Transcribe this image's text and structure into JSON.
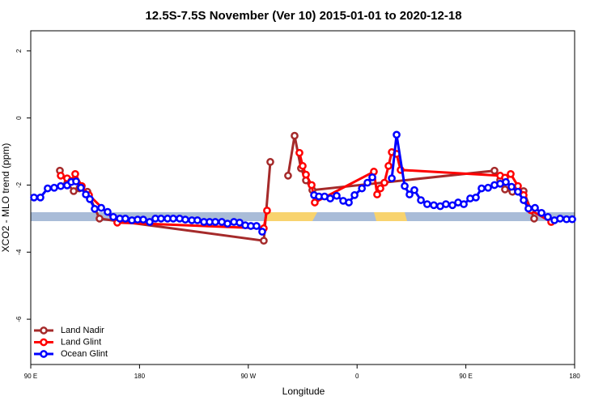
{
  "chart_data": {
    "type": "line",
    "title": "12.5S-7.5S November (Ver 10)   2015-01-01 to 2020-12-18",
    "x_label": "Longitude",
    "y_label": "XCO2 - MLO trend (ppm)",
    "xlim": [
      90,
      540
    ],
    "ylim": [
      -7.35,
      2.6
    ],
    "xticks": [
      {
        "value": 90,
        "label": "90 E"
      },
      {
        "value": 180,
        "label": "180"
      },
      {
        "value": 270,
        "label": "90 W"
      },
      {
        "value": 360,
        "label": "0"
      },
      {
        "value": 450,
        "label": "90 E"
      },
      {
        "value": 540,
        "label": "180"
      }
    ],
    "yticks": [
      2,
      0,
      -2,
      -4,
      -6
    ],
    "legend": "bottom-left",
    "series": [
      {
        "name": "Land Nadir",
        "color": "#a52a2a",
        "x": [
          114.1,
          120.1,
          125.5,
          130.2,
          136.9,
          146.9,
          282.8,
          288.2,
          295.0,
          302.9,
          308.3,
          313.6,
          317.7,
          323.0,
          473.7,
          478.4,
          482.4,
          488.5,
          497.8,
          506.5
        ],
        "values": [
          -1.57,
          -1.95,
          -2.18,
          -2.1,
          -2.2,
          -3.0,
          -3.66,
          -1.31,
          null,
          -1.72,
          -0.53,
          -1.5,
          -1.86,
          -2.15,
          -1.57,
          -1.85,
          -2.13,
          -2.2,
          -2.18,
          -3.0
        ]
      },
      {
        "name": "Land Glint",
        "color": "#ff0000",
        "x": [
          114.8,
          120.1,
          123.5,
          126.8,
          132.2,
          138.2,
          161.6,
          282.8,
          285.5,
          298.0,
          312.3,
          315.0,
          317.7,
          322.4,
          325.0,
          373.9,
          376.6,
          379.3,
          382.6,
          386.0,
          388.7,
          392.7,
          396.0,
          478.4,
          482.4,
          487.1,
          493.1,
          497.8,
          503.8,
          520.6
        ],
        "values": [
          -1.72,
          -1.8,
          -1.88,
          -1.67,
          -2.03,
          -2.3,
          -3.12,
          -3.29,
          -2.76,
          null,
          -1.04,
          -1.43,
          -1.69,
          -2.0,
          -2.52,
          -1.6,
          -2.28,
          -2.1,
          -1.93,
          -1.43,
          -1.02,
          -1.07,
          -1.55,
          -1.72,
          -1.78,
          -1.67,
          -2.03,
          -2.3,
          -2.75,
          -3.1
        ]
      },
      {
        "name": "Ocean Glint",
        "color": "#0000ff",
        "x": [
          92.7,
          98.0,
          104.0,
          109.4,
          114.8,
          120.1,
          123.5,
          127.5,
          131.5,
          135.6,
          138.9,
          142.9,
          148.3,
          153.6,
          158.3,
          163.7,
          168.3,
          173.7,
          178.4,
          183.1,
          188.4,
          193.1,
          197.8,
          203.2,
          207.9,
          213.2,
          217.9,
          223.3,
          227.9,
          233.3,
          238.0,
          242.7,
          248.1,
          252.8,
          258.1,
          262.8,
          267.5,
          272.1,
          276.8,
          281.5,
          300.0,
          324.4,
          328.4,
          333.1,
          337.8,
          343.1,
          348.5,
          353.2,
          357.9,
          364.0,
          368.6,
          372.6,
          380.0,
          388.7,
          392.7,
          399.4,
          403.4,
          407.4,
          412.8,
          418.0,
          423.5,
          428.8,
          433.5,
          438.9,
          443.6,
          448.3,
          453.6,
          458.3,
          463.0,
          468.4,
          473.7,
          478.4,
          483.1,
          487.8,
          493.1,
          497.8,
          501.8,
          507.2,
          512.6,
          517.9,
          523.3,
          528.0,
          533.3,
          538.0
        ],
        "values": [
          -2.37,
          -2.37,
          -2.1,
          -2.08,
          -2.03,
          -2.01,
          -1.91,
          -1.89,
          -2.08,
          -2.28,
          -2.42,
          -2.71,
          -2.68,
          -2.8,
          -2.95,
          -3.0,
          -3.0,
          -3.05,
          -3.03,
          -3.03,
          -3.1,
          -3.0,
          -3.0,
          -3.0,
          -3.0,
          -3.0,
          -3.03,
          -3.05,
          -3.05,
          -3.1,
          -3.1,
          -3.1,
          -3.1,
          -3.15,
          -3.1,
          -3.12,
          -3.2,
          -3.22,
          -3.22,
          -3.39,
          null,
          -2.3,
          -2.34,
          -2.34,
          -2.4,
          -2.32,
          -2.47,
          -2.52,
          -2.3,
          -2.1,
          -1.93,
          -1.77,
          null,
          -1.8,
          -0.5,
          -2.03,
          -2.28,
          -2.15,
          -2.45,
          -2.57,
          -2.6,
          -2.63,
          -2.57,
          -2.6,
          -2.52,
          -2.57,
          -2.4,
          -2.37,
          -2.1,
          -2.08,
          -2.0,
          -1.96,
          -1.91,
          -2.05,
          -2.2,
          -2.45,
          -2.7,
          -2.68,
          -2.83,
          -2.95,
          -3.05,
          -3.0,
          -3.02,
          -3.02
        ]
      }
    ]
  }
}
